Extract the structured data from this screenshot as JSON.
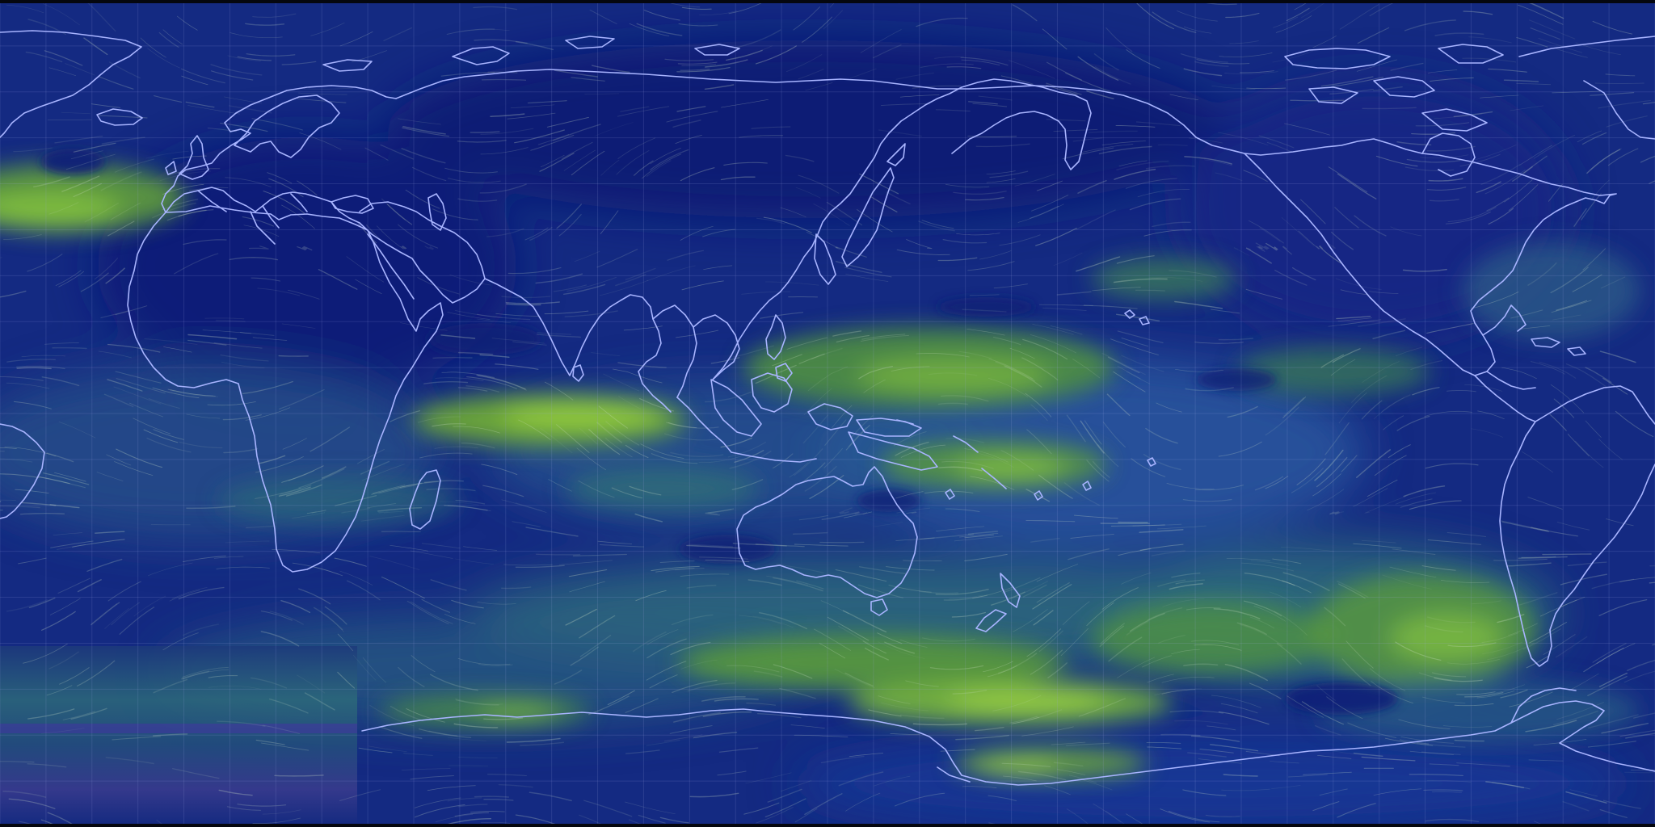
{
  "map": {
    "type": "wind-speed-visualization",
    "projection": "equirectangular",
    "center_longitude": 180,
    "view": "global",
    "graticule_step_degrees": 10,
    "colors": {
      "calm": "#0d1a6e",
      "low": "#1e3f8a",
      "medium": "#2e6e78",
      "high": "#5f9e3a",
      "very_high": "#8fcc3e",
      "coastline": "#a8b4ff",
      "graticule": "#a0aae6",
      "streamline": "#cfe3c8"
    }
  }
}
